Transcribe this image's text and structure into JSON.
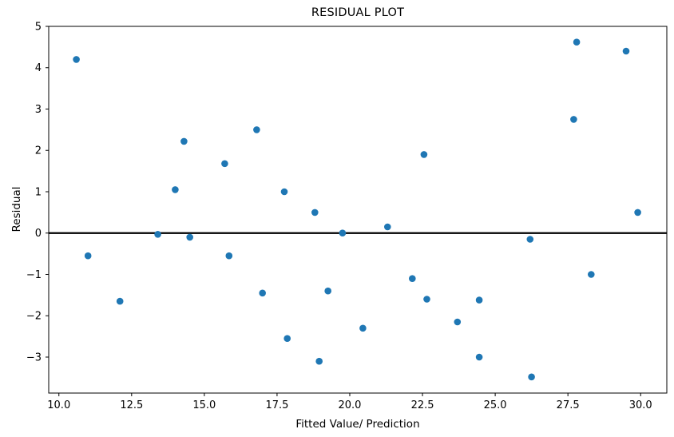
{
  "chart_data": {
    "type": "scatter",
    "title": "RESIDUAL PLOT",
    "xlabel": "Fitted Value/ Prediction",
    "ylabel": "Residual",
    "xlim": [
      9.65,
      30.9
    ],
    "ylim": [
      -3.87,
      5.0
    ],
    "grid": false,
    "legend_position": "none",
    "marker_color": "#1f77b4",
    "spine_color": "#000000",
    "zero_line": {
      "y": 0,
      "color": "#000000"
    },
    "x_tick_values": [
      10.0,
      12.5,
      15.0,
      17.5,
      20.0,
      22.5,
      25.0,
      27.5,
      30.0
    ],
    "x_tick_labels": [
      "10.0",
      "12.5",
      "15.0",
      "17.5",
      "20.0",
      "22.5",
      "25.0",
      "27.5",
      "30.0"
    ],
    "y_tick_values": [
      -3,
      -2,
      -1,
      0,
      1,
      2,
      3,
      4,
      5
    ],
    "y_tick_labels": [
      "−3",
      "−2",
      "−1",
      "0",
      "1",
      "2",
      "3",
      "4",
      "5"
    ],
    "points": [
      [
        10.6,
        4.2
      ],
      [
        11.0,
        -0.55
      ],
      [
        12.1,
        -1.65
      ],
      [
        13.4,
        -0.03
      ],
      [
        14.0,
        1.05
      ],
      [
        14.3,
        2.22
      ],
      [
        14.5,
        -0.1
      ],
      [
        15.7,
        1.68
      ],
      [
        15.85,
        -0.55
      ],
      [
        16.8,
        2.5
      ],
      [
        17.0,
        -1.45
      ],
      [
        17.75,
        1.0
      ],
      [
        17.85,
        -2.55
      ],
      [
        18.8,
        0.5
      ],
      [
        18.95,
        -3.1
      ],
      [
        19.25,
        -1.4
      ],
      [
        19.75,
        0.0
      ],
      [
        20.45,
        -2.3
      ],
      [
        21.3,
        0.15
      ],
      [
        22.15,
        -1.1
      ],
      [
        22.55,
        1.9
      ],
      [
        22.65,
        -1.6
      ],
      [
        23.7,
        -2.15
      ],
      [
        24.45,
        -1.62
      ],
      [
        24.45,
        -3.0
      ],
      [
        26.2,
        -0.15
      ],
      [
        26.25,
        -3.48
      ],
      [
        27.7,
        2.75
      ],
      [
        27.8,
        4.62
      ],
      [
        28.3,
        -1.0
      ],
      [
        29.5,
        4.4
      ],
      [
        29.9,
        0.5
      ]
    ]
  }
}
